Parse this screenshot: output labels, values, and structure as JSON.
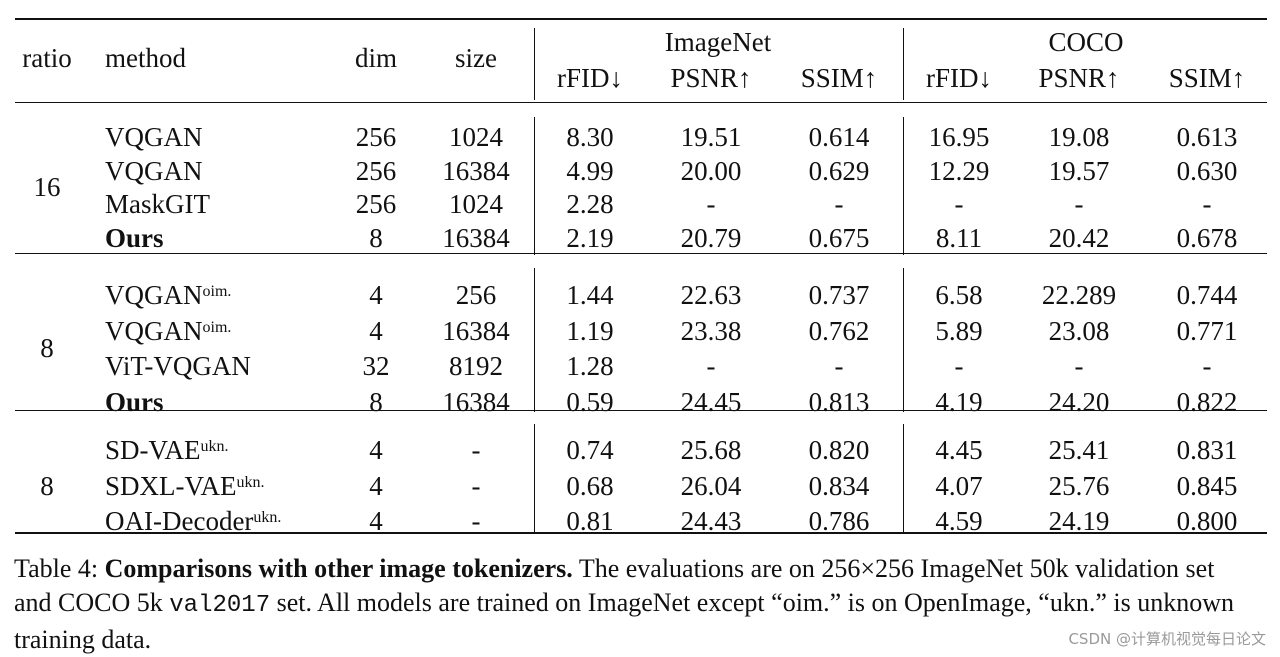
{
  "table": {
    "group_headers": [
      {
        "label": "ImageNet"
      },
      {
        "label": "COCO"
      }
    ],
    "columns": [
      "ratio",
      "method",
      "dim",
      "size",
      "rFID↓",
      "PSNR↑",
      "SSIM↑",
      "rFID↓",
      "PSNR↑",
      "SSIM↑"
    ],
    "groups": [
      {
        "ratio": "16",
        "rows": [
          {
            "method": "VQGAN",
            "sup": "",
            "bold": false,
            "dim": "256",
            "size": "1024",
            "in_rfid": "8.30",
            "in_psnr": "19.51",
            "in_ssim": "0.614",
            "coco_rfid": "16.95",
            "coco_psnr": "19.08",
            "coco_ssim": "0.613"
          },
          {
            "method": "VQGAN",
            "sup": "",
            "bold": false,
            "dim": "256",
            "size": "16384",
            "in_rfid": "4.99",
            "in_psnr": "20.00",
            "in_ssim": "0.629",
            "coco_rfid": "12.29",
            "coco_psnr": "19.57",
            "coco_ssim": "0.630"
          },
          {
            "method": "MaskGIT",
            "sup": "",
            "bold": false,
            "dim": "256",
            "size": "1024",
            "in_rfid": "2.28",
            "in_psnr": "-",
            "in_ssim": "-",
            "coco_rfid": "-",
            "coco_psnr": "-",
            "coco_ssim": "-"
          },
          {
            "method": "Ours",
            "sup": "",
            "bold": true,
            "dim": "8",
            "size": "16384",
            "in_rfid": "2.19",
            "in_psnr": "20.79",
            "in_ssim": "0.675",
            "coco_rfid": "8.11",
            "coco_psnr": "20.42",
            "coco_ssim": "0.678"
          }
        ]
      },
      {
        "ratio": "8",
        "rows": [
          {
            "method": "VQGAN",
            "sup": "oim.",
            "bold": false,
            "dim": "4",
            "size": "256",
            "in_rfid": "1.44",
            "in_psnr": "22.63",
            "in_ssim": "0.737",
            "coco_rfid": "6.58",
            "coco_psnr": "22.289",
            "coco_ssim": "0.744"
          },
          {
            "method": "VQGAN",
            "sup": "oim.",
            "bold": false,
            "dim": "4",
            "size": "16384",
            "in_rfid": "1.19",
            "in_psnr": "23.38",
            "in_ssim": "0.762",
            "coco_rfid": "5.89",
            "coco_psnr": "23.08",
            "coco_ssim": "0.771"
          },
          {
            "method": "ViT-VQGAN",
            "sup": "",
            "bold": false,
            "dim": "32",
            "size": "8192",
            "in_rfid": "1.28",
            "in_psnr": "-",
            "in_ssim": "-",
            "coco_rfid": "-",
            "coco_psnr": "-",
            "coco_ssim": "-"
          },
          {
            "method": "Ours",
            "sup": "",
            "bold": true,
            "dim": "8",
            "size": "16384",
            "in_rfid": "0.59",
            "in_psnr": "24.45",
            "in_ssim": "0.813",
            "coco_rfid": "4.19",
            "coco_psnr": "24.20",
            "coco_ssim": "0.822"
          }
        ]
      },
      {
        "ratio": "8",
        "rows": [
          {
            "method": "SD-VAE",
            "sup": "ukn.",
            "bold": false,
            "dim": "4",
            "size": "-",
            "in_rfid": "0.74",
            "in_psnr": "25.68",
            "in_ssim": "0.820",
            "coco_rfid": "4.45",
            "coco_psnr": "25.41",
            "coco_ssim": "0.831"
          },
          {
            "method": "SDXL-VAE",
            "sup": "ukn.",
            "bold": false,
            "dim": "4",
            "size": "-",
            "in_rfid": "0.68",
            "in_psnr": "26.04",
            "in_ssim": "0.834",
            "coco_rfid": "4.07",
            "coco_psnr": "25.76",
            "coco_ssim": "0.845"
          },
          {
            "method": "OAI-Decoder",
            "sup": "ukn.",
            "bold": false,
            "dim": "4",
            "size": "-",
            "in_rfid": "0.81",
            "in_psnr": "24.43",
            "in_ssim": "0.786",
            "coco_rfid": "4.59",
            "coco_psnr": "24.19",
            "coco_ssim": "0.800"
          }
        ]
      }
    ]
  },
  "caption": {
    "label": "Table 4:",
    "title": "Comparisons with other image tokenizers.",
    "text_1": "The evaluations are on 256×256 ImageNet 50k validation set and COCO 5k",
    "code": "val2017",
    "text_2": "set. All models are trained on ImageNet except “oim.” is on OpenImage, “ukn.” is unknown training data."
  },
  "watermark": "CSDN @计算机视觉每日论文"
}
